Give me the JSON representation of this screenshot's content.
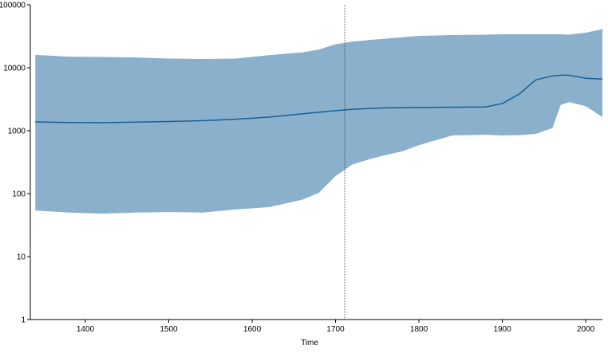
{
  "chart_data": {
    "type": "band-line",
    "x_label": "Time",
    "x": [
      1340,
      1380,
      1420,
      1460,
      1500,
      1540,
      1580,
      1620,
      1660,
      1680,
      1700,
      1720,
      1740,
      1760,
      1780,
      1800,
      1840,
      1880,
      1900,
      1920,
      1940,
      1960,
      1970,
      1980,
      2000,
      2020
    ],
    "values": [
      1380,
      1350,
      1340,
      1370,
      1400,
      1440,
      1520,
      1640,
      1850,
      1960,
      2080,
      2180,
      2250,
      2300,
      2320,
      2340,
      2360,
      2380,
      2700,
      3800,
      6400,
      7400,
      7600,
      7600,
      6800,
      6600
    ],
    "lower": [
      54,
      50,
      48,
      50,
      51,
      50,
      56,
      61,
      80,
      103,
      190,
      290,
      350,
      410,
      470,
      590,
      840,
      860,
      840,
      850,
      890,
      1100,
      2570,
      2850,
      2450,
      1650
    ],
    "upper": [
      16000,
      15000,
      14800,
      14600,
      14000,
      13800,
      14000,
      15800,
      17500,
      19500,
      23500,
      26000,
      27500,
      29000,
      30500,
      32000,
      33000,
      33500,
      34000,
      34000,
      34000,
      34000,
      34000,
      33500,
      36000,
      41000
    ],
    "line_color": "#1a5f94",
    "band_color": "#8ab0cc",
    "vline": 1711,
    "xlim": [
      1334,
      2020
    ],
    "ylim": [
      1,
      100000
    ],
    "log_y": true,
    "xticks": [
      1400,
      1500,
      1600,
      1700,
      1800,
      1900,
      2000
    ],
    "yticks": [
      1,
      10,
      100,
      1000,
      10000,
      100000
    ]
  }
}
